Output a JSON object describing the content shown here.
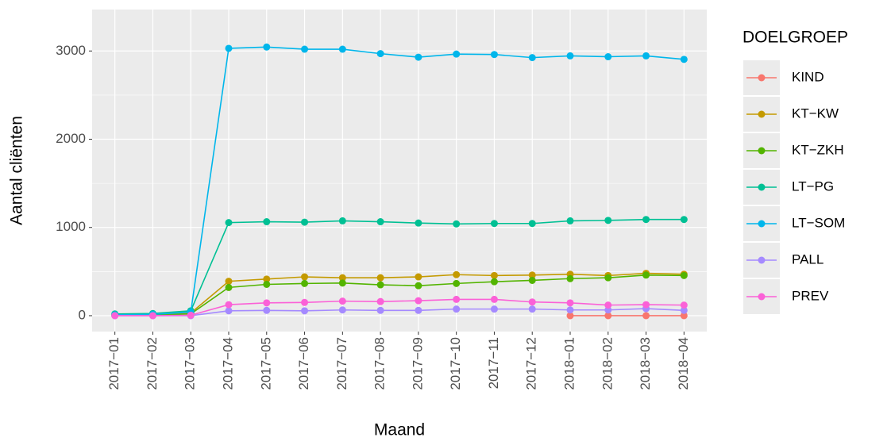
{
  "chart_data": {
    "type": "line",
    "x_label": "Maand",
    "y_label": "Aantal cliënten",
    "legend_title": "DOELGROEP",
    "legend_position": "right",
    "categories": [
      "2017−01",
      "2017−02",
      "2017−03",
      "2017−04",
      "2017−05",
      "2017−06",
      "2017−07",
      "2017−08",
      "2017−09",
      "2017−10",
      "2017−11",
      "2017−12",
      "2018−01",
      "2018−02",
      "2018−03",
      "2018−04"
    ],
    "ylim": [
      -180,
      3470
    ],
    "yticks": [
      0,
      1000,
      2000,
      3000
    ],
    "y_minor_ticks": [
      500,
      1500,
      2500
    ],
    "grid": true,
    "series": [
      {
        "name": "KIND",
        "color": "#F8766D",
        "values": [
          null,
          null,
          null,
          null,
          null,
          null,
          null,
          null,
          null,
          null,
          null,
          null,
          0,
          0,
          0,
          0
        ]
      },
      {
        "name": "KT−KW",
        "color": "#C49A00",
        "values": [
          5,
          5,
          30,
          390,
          415,
          440,
          430,
          430,
          440,
          465,
          455,
          460,
          470,
          455,
          480,
          470
        ]
      },
      {
        "name": "KT−ZKH",
        "color": "#53B400",
        "values": [
          5,
          5,
          20,
          320,
          355,
          365,
          370,
          350,
          340,
          365,
          385,
          400,
          420,
          430,
          460,
          455
        ]
      },
      {
        "name": "LT−PG",
        "color": "#00C094",
        "values": [
          20,
          25,
          55,
          1055,
          1065,
          1060,
          1075,
          1065,
          1050,
          1040,
          1045,
          1045,
          1075,
          1080,
          1090,
          1090
        ]
      },
      {
        "name": "LT−SOM",
        "color": "#00B6EB",
        "values": [
          10,
          15,
          40,
          3030,
          3045,
          3020,
          3020,
          2970,
          2930,
          2965,
          2960,
          2925,
          2945,
          2935,
          2945,
          2905
        ]
      },
      {
        "name": "PALL",
        "color": "#A58AFF",
        "values": [
          0,
          0,
          0,
          55,
          60,
          55,
          65,
          60,
          60,
          75,
          75,
          75,
          65,
          65,
          80,
          60
        ]
      },
      {
        "name": "PREV",
        "color": "#FB61D7",
        "values": [
          0,
          0,
          5,
          125,
          145,
          150,
          165,
          160,
          170,
          185,
          185,
          155,
          145,
          120,
          125,
          120
        ]
      }
    ]
  }
}
